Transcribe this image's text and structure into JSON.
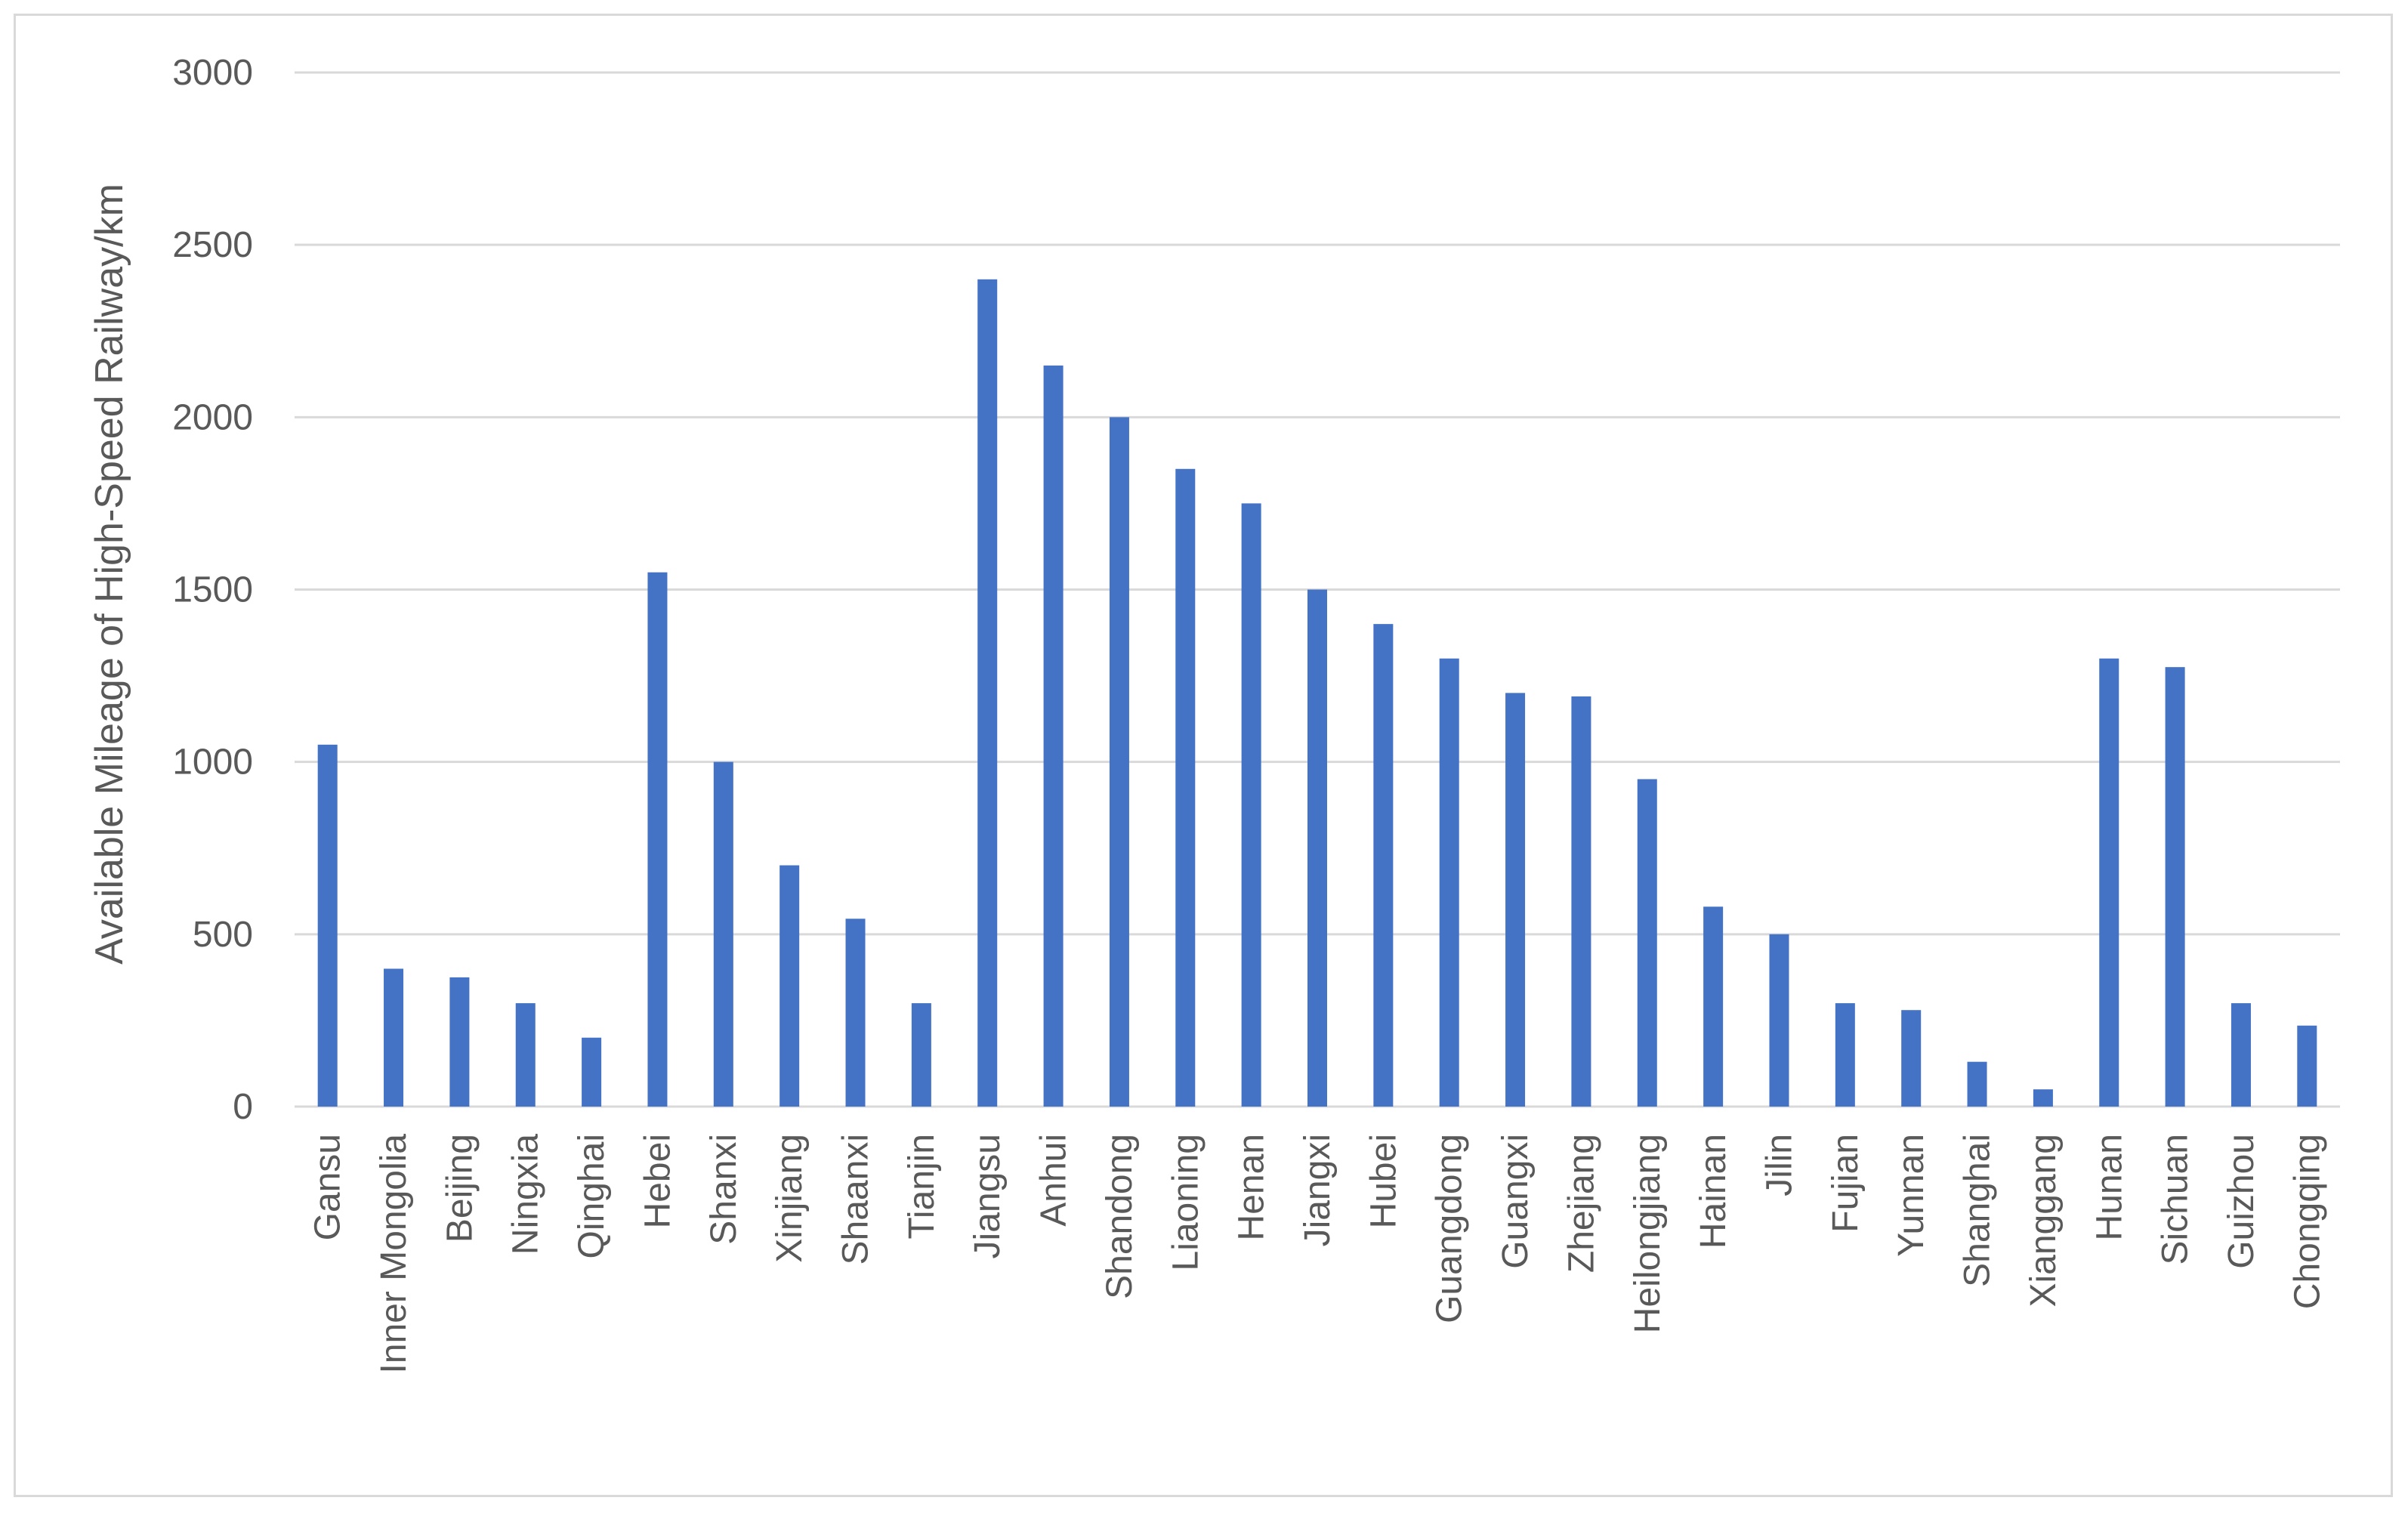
{
  "chart_data": {
    "type": "bar",
    "title": "",
    "xlabel": "",
    "ylabel": "Available Mileage of High-Speed Railway/km",
    "ylim": [
      0,
      3000
    ],
    "yticks": [
      0,
      500,
      1000,
      1500,
      2000,
      2500,
      3000
    ],
    "grid": "horizontal",
    "legend": "none",
    "bar_color": "#4472c4",
    "grid_color": "#d9d9d9",
    "categories": [
      "Gansu",
      "Inner Mongolia",
      "Beijing",
      "Ningxia",
      "Qinghai",
      "Hebei",
      "Shanxi",
      "Xinjiang",
      "Shaanxi",
      "Tianjin",
      "Jiangsu",
      "Anhui",
      "Shandong",
      "Liaoning",
      "Henan",
      "Jiangxi",
      "Hubei",
      "Guangdong",
      "Guangxi",
      "Zhejiang",
      "Heilongjiang",
      "Hainan",
      "Jilin",
      "Fujian",
      "Yunnan",
      "Shanghai",
      "Xianggang",
      "Hunan",
      "Sichuan",
      "Guizhou",
      "Chongqing"
    ],
    "values": [
      1050,
      400,
      375,
      300,
      200,
      1550,
      1000,
      700,
      545,
      300,
      2400,
      2150,
      2000,
      1850,
      1750,
      1500,
      1400,
      1300,
      1200,
      1190,
      950,
      580,
      500,
      300,
      280,
      130,
      50,
      1300,
      1275,
      300,
      235
    ]
  }
}
